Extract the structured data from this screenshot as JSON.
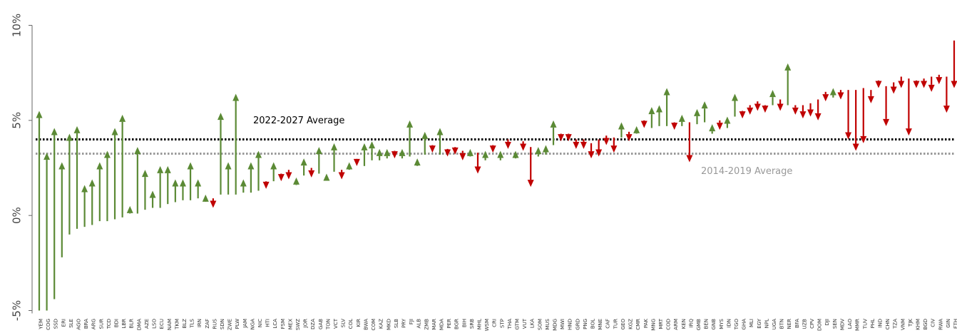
{
  "chart_data": {
    "type": "arrow",
    "categories": [
      "YEM",
      "COG",
      "SSD",
      "ERI",
      "SLE",
      "AGO",
      "BRA",
      "ARG",
      "SUR",
      "TCD",
      "BDI",
      "LBR",
      "BLR",
      "DMA",
      "AZE",
      "LSO",
      "ECU",
      "NAM",
      "TKM",
      "BLZ",
      "TLS",
      "IRN",
      "ZAF",
      "RUS",
      "SDN",
      "ZWE",
      "PLW",
      "JAM",
      "NGA",
      "NIC",
      "HTI",
      "LCA",
      "FSM",
      "MEX",
      "SWZ",
      "JOR",
      "DZA",
      "GAB",
      "TON",
      "VCT",
      "SLV",
      "COL",
      "KIR",
      "BWA",
      "COM",
      "KAZ",
      "MKD",
      "SLB",
      "PRY",
      "FJI",
      "ALB",
      "ZMB",
      "MAR",
      "MDA",
      "PER",
      "BGR",
      "BIH",
      "SRB",
      "MHL",
      "WSM",
      "CRI",
      "STP",
      "THA",
      "GTM",
      "VUT",
      "LKA",
      "SOM",
      "MUS",
      "MDG",
      "MWI",
      "HND",
      "GRD",
      "PNG",
      "BOL",
      "MNE",
      "CAF",
      "TUR",
      "GEO",
      "KGZ",
      "CMR",
      "PAK",
      "MNG",
      "MRT",
      "COD",
      "ARM",
      "KEN",
      "IRQ",
      "GMB",
      "BEN",
      "GNB",
      "MYS",
      "IDN",
      "TGO",
      "GHA",
      "MLI",
      "EGY",
      "NPL",
      "UGA",
      "BTN",
      "NER",
      "BFA",
      "UZB",
      "CPV",
      "DOM",
      "DJI",
      "SEN",
      "MDV",
      "LAO",
      "MMR",
      "TUV",
      "PHL",
      "IND",
      "CHN",
      "TZA",
      "VNM",
      "TJK",
      "KHM",
      "BGD",
      "CIV",
      "RWA",
      "GIN",
      "ETH"
    ],
    "start": [
      -5.0,
      -5.0,
      -4.4,
      -2.2,
      -1.0,
      -0.7,
      -0.6,
      -0.5,
      -0.3,
      -0.3,
      -0.2,
      -0.1,
      0.1,
      0.1,
      0.3,
      0.4,
      0.4,
      0.6,
      0.7,
      0.8,
      0.8,
      0.9,
      0.9,
      0.9,
      1.1,
      1.1,
      1.1,
      1.2,
      1.2,
      1.3,
      1.8,
      1.8,
      2.2,
      2.4,
      1.6,
      2.1,
      2.5,
      2.2,
      1.9,
      2.3,
      2.4,
      2.4,
      2.9,
      2.6,
      2.9,
      2.9,
      3.0,
      3.4,
      3.0,
      3.1,
      2.6,
      3.2,
      3.7,
      3.2,
      3.5,
      3.6,
      3.4,
      3.1,
      3.3,
      2.9,
      3.7,
      2.9,
      4.0,
      3.0,
      3.9,
      3.6,
      3.1,
      3.2,
      3.7,
      4.3,
      4.3,
      4.0,
      4.0,
      3.8,
      4.0,
      4.2,
      4.1,
      4.1,
      4.4,
      4.3,
      5.0,
      4.6,
      4.7,
      4.7,
      4.9,
      4.7,
      4.9,
      4.8,
      4.9,
      4.3,
      5.0,
      4.6,
      5.2,
      5.5,
      5.8,
      6.0,
      5.8,
      5.8,
      6.1,
      5.8,
      5.8,
      5.8,
      5.9,
      6.1,
      6.5,
      6.2,
      6.6,
      6.6,
      6.6,
      6.7,
      6.6,
      7.1,
      6.8,
      7.0,
      7.3,
      7.2,
      7.1,
      7.2,
      7.3,
      7.4,
      7.3,
      9.2
    ],
    "end": [
      5.5,
      3.3,
      4.6,
      2.8,
      4.3,
      4.7,
      1.6,
      1.9,
      2.8,
      3.4,
      4.6,
      5.3,
      0.5,
      3.6,
      2.4,
      1.3,
      2.6,
      2.6,
      1.9,
      1.9,
      2.8,
      1.9,
      1.1,
      0.4,
      5.4,
      2.8,
      6.4,
      1.9,
      2.8,
      3.4,
      1.4,
      2.8,
      1.8,
      1.9,
      2.0,
      3.0,
      2.0,
      3.6,
      2.2,
      3.8,
      1.9,
      2.8,
      2.6,
      3.8,
      3.9,
      3.5,
      3.5,
      3.0,
      3.5,
      5.0,
      3.0,
      4.4,
      3.3,
      4.6,
      3.1,
      3.2,
      2.9,
      3.5,
      2.2,
      3.4,
      3.3,
      3.4,
      3.5,
      3.4,
      3.4,
      1.5,
      3.6,
      3.7,
      5.0,
      3.9,
      3.9,
      3.5,
      3.5,
      3.0,
      3.1,
      3.7,
      3.3,
      4.9,
      3.9,
      4.7,
      4.6,
      5.7,
      5.8,
      6.7,
      4.5,
      5.3,
      2.8,
      5.6,
      6.0,
      4.8,
      4.5,
      5.2,
      6.4,
      5.1,
      5.3,
      5.5,
      5.4,
      6.6,
      5.5,
      8.0,
      5.3,
      5.1,
      5.2,
      5.0,
      6.0,
      6.7,
      6.1,
      4.0,
      3.4,
      3.8,
      5.9,
      6.7,
      4.7,
      6.4,
      6.7,
      4.2,
      6.7,
      6.7,
      6.5,
      6.9,
      5.4,
      6.7
    ],
    "colors": {
      "up": "#5b8a35",
      "down": "#c00000"
    },
    "ylim": [
      -5,
      10
    ],
    "yticks": [
      {
        "value": -5,
        "label": "-5%"
      },
      {
        "value": 0,
        "label": "0%"
      },
      {
        "value": 5,
        "label": "5%"
      },
      {
        "value": 10,
        "label": "10%"
      }
    ],
    "reference_lines": [
      {
        "label": "2022-2027 Average",
        "value": 4.0,
        "color": "#000000"
      },
      {
        "label": "2014-2019 Average",
        "value": 3.25,
        "color": "#999999"
      }
    ]
  }
}
